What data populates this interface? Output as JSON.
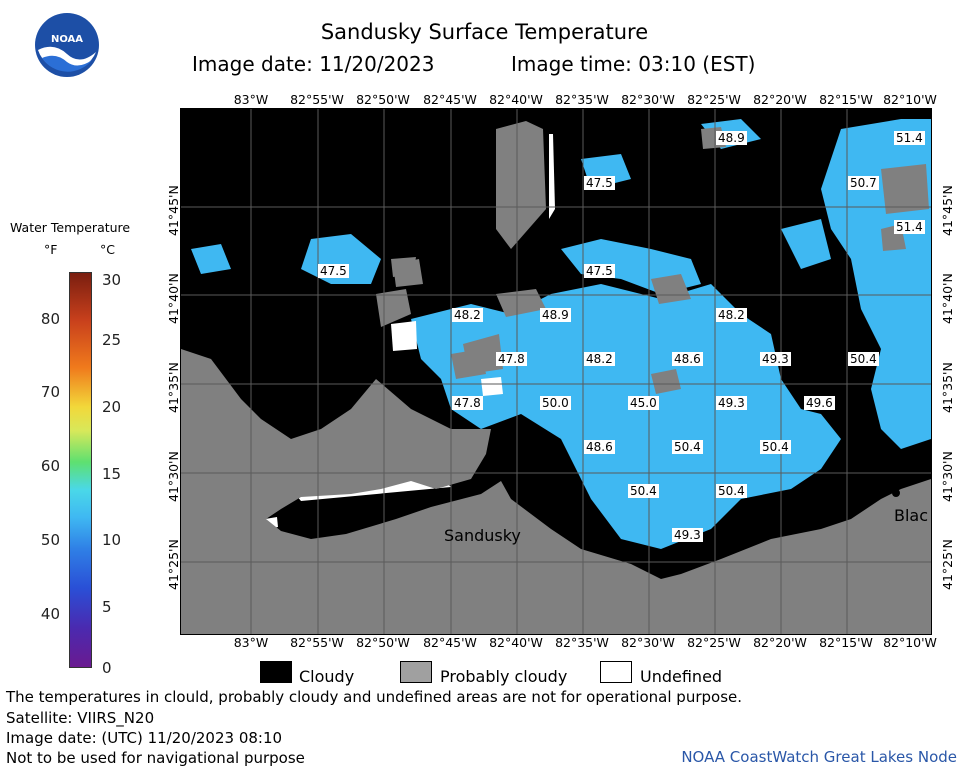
{
  "header": {
    "title": "Sandusky Surface Temperature",
    "image_date": "Image date: 11/20/2023",
    "image_time": "Image time: 03:10 (EST)"
  },
  "logo": {
    "text": "NOAA",
    "icon": "noaa-logo"
  },
  "colorbar": {
    "title": "Water Temperature",
    "unit_f": "°F",
    "unit_c": "°C",
    "celsius_ticks": [
      "30",
      "25",
      "20",
      "15",
      "10",
      "5",
      "0"
    ],
    "fahrenheit_ticks": [
      "80",
      "70",
      "60",
      "50",
      "40"
    ]
  },
  "map": {
    "lon_labels": [
      "83°W",
      "82°55'W",
      "82°50'W",
      "82°45'W",
      "82°40'W",
      "82°35'W",
      "82°30'W",
      "82°25'W",
      "82°20'W",
      "82°15'W",
      "82°10'W"
    ],
    "lat_labels": [
      "41°45'N",
      "41°40'N",
      "41°35'N",
      "41°30'N",
      "41°25'N"
    ],
    "place_labels": {
      "sandusky": "Sandusky",
      "partial": "Blac"
    },
    "temperature_labels": [
      "48.9",
      "51.4",
      "47.5",
      "50.7",
      "51.4",
      "47.5",
      "47.5",
      "48.2",
      "48.9",
      "48.2",
      "47.8",
      "48.2",
      "48.6",
      "49.3",
      "50.4",
      "47.8",
      "50.0",
      "45.0",
      "49.3",
      "49.6",
      "48.6",
      "50.4",
      "50.4",
      "50.4",
      "50.4",
      "49.3"
    ],
    "colors": {
      "cloudy": "#000000",
      "probably_cloudy": "#808080",
      "undefined": "#ffffff",
      "water": "#3fb8f2",
      "land": "#808080"
    }
  },
  "legend": {
    "cloudy": "Cloudy",
    "probably_cloudy": "Probably cloudy",
    "undefined": "Undefined"
  },
  "footer": {
    "disclaimer": "The temperatures in clould, probably cloudy and undefined areas are not for operational purpose.",
    "satellite": "Satellite: VIIRS_N20",
    "utc_date": "Image date: (UTC) 11/20/2023  08:10",
    "nav_warning": "Not to be used for navigational purpose",
    "credit": "NOAA CoastWatch Great Lakes Node"
  }
}
